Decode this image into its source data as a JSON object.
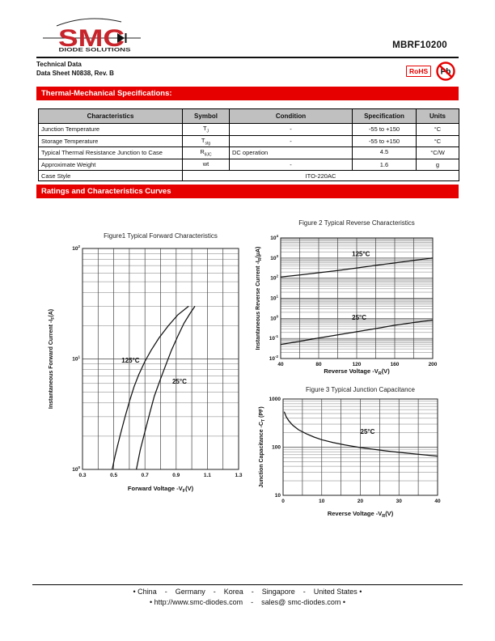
{
  "header": {
    "brand": "SMC",
    "brand_tagline": "DIODE SOLUTIONS",
    "part_number": "MBRF10200",
    "doc_title": "Technical Data",
    "doc_subtitle": "Data Sheet N0838, Rev. B",
    "rohs_label": "RoHS",
    "pb_label": "Pb"
  },
  "section_banners": {
    "thermal": "Thermal-Mechanical Specifications:",
    "curves": "Ratings and Characteristics Curves"
  },
  "colors": {
    "banner_red": "#e60000",
    "logo_red": "#c8242b",
    "table_header_bg": "#c0c0c0"
  },
  "spec_table": {
    "columns": [
      "Characteristics",
      "Symbol",
      "Condition",
      "Specification",
      "Units"
    ],
    "rows": [
      {
        "characteristics": "Junction Temperature",
        "symbol_base": "T",
        "symbol_sub": "J",
        "condition": "-",
        "specification": "-55 to +150",
        "units": "°C"
      },
      {
        "characteristics": "Storage Temperature",
        "symbol_base": "T",
        "symbol_sub": "stg",
        "condition": "-",
        "specification": "-55 to +150",
        "units": "°C"
      },
      {
        "characteristics": "Typical Thermal Resistance Junction to Case",
        "symbol_base": "R",
        "symbol_sub": "θJC",
        "condition": "DC operation",
        "specification": "4.5",
        "units": "°C/W"
      },
      {
        "characteristics": "Approximate Weight",
        "symbol_base": "wt",
        "symbol_sub": "",
        "condition": "-",
        "specification": "1.6",
        "units": "g"
      },
      {
        "characteristics": "Case Style",
        "span_value": "ITO-220AC"
      }
    ]
  },
  "chart_data": [
    {
      "id": "fig1",
      "type": "line",
      "title": "Figure1 Typical Forward Characteristics",
      "xlabel": "Forward Voltage -V~F~(V)",
      "ylabel": "Instantaneous Forward Current -I~F~(A)",
      "xlim": [
        0.3,
        1.3
      ],
      "x_grid_step": 0.1,
      "x_ticks": [
        "0.3",
        "0.5",
        "0.7",
        "0.9",
        "1.1",
        "1.3"
      ],
      "ylim": [
        1,
        100
      ],
      "y_exp": [
        0,
        2
      ],
      "y_tick_style": "pow",
      "grid": true,
      "legend_position": "none",
      "series": [
        {
          "name": "125°C",
          "points": [
            [
              0.49,
              1
            ],
            [
              0.51,
              1.35
            ],
            [
              0.54,
              2.0
            ],
            [
              0.57,
              2.9
            ],
            [
              0.6,
              4.1
            ],
            [
              0.63,
              5.6
            ],
            [
              0.66,
              7.2
            ],
            [
              0.7,
              9.5
            ],
            [
              0.74,
              12
            ],
            [
              0.79,
              15.5
            ],
            [
              0.85,
              20
            ],
            [
              0.91,
              25
            ],
            [
              0.96,
              28.5
            ],
            [
              0.98,
              30
            ]
          ],
          "label": {
            "x": 0.55,
            "y": 9.3
          }
        },
        {
          "name": "25°C",
          "points": [
            [
              0.645,
              1
            ],
            [
              0.67,
              1.5
            ],
            [
              0.7,
              2.2
            ],
            [
              0.73,
              3.2
            ],
            [
              0.76,
              4.6
            ],
            [
              0.8,
              6.6
            ],
            [
              0.84,
              9.3
            ],
            [
              0.87,
              12
            ],
            [
              0.91,
              16
            ],
            [
              0.95,
              21
            ],
            [
              0.99,
              26
            ],
            [
              1.02,
              30
            ]
          ],
          "label": {
            "x": 0.875,
            "y": 6
          }
        }
      ]
    },
    {
      "id": "fig2",
      "type": "line",
      "title": "Figure 2 Typical Reverse Characteristics",
      "xlabel": "Reverse Voltage -V~R~(V)",
      "ylabel": "Instantaneous Reverse Current -I~R~(μA)",
      "xlim": [
        40,
        200
      ],
      "x_grid_step": 20,
      "x_ticks": [
        "40",
        "80",
        "120",
        "160",
        "200"
      ],
      "ylim": [
        0.01,
        10000
      ],
      "y_exp": [
        -2,
        4
      ],
      "y_tick_style": "pow",
      "grid": true,
      "legend_position": "none",
      "series": [
        {
          "name": "125°C",
          "points": [
            [
              40,
              115
            ],
            [
              60,
              145
            ],
            [
              80,
              185
            ],
            [
              100,
              240
            ],
            [
              120,
              320
            ],
            [
              140,
              430
            ],
            [
              160,
              570
            ],
            [
              180,
              760
            ],
            [
              200,
              1000
            ]
          ],
          "label": {
            "x": 115,
            "y": 1250
          }
        },
        {
          "name": "25°C",
          "points": [
            [
              40,
              0.05
            ],
            [
              60,
              0.072
            ],
            [
              80,
              0.105
            ],
            [
              100,
              0.15
            ],
            [
              120,
              0.215
            ],
            [
              140,
              0.31
            ],
            [
              160,
              0.45
            ],
            [
              180,
              0.62
            ],
            [
              200,
              0.82
            ]
          ],
          "label": {
            "x": 115,
            "y": 0.85
          }
        }
      ]
    },
    {
      "id": "fig3",
      "type": "line",
      "title": "Figure 3 Typical Junction Capacitance",
      "xlabel": "Reverse Voltage -V~R~(V)",
      "ylabel": "Junction Capacitance -C~T~ (PF)",
      "xlim": [
        0,
        40
      ],
      "x_grid_step": 5,
      "x_ticks": [
        "0",
        "10",
        "20",
        "30",
        "40"
      ],
      "ylim": [
        10,
        1000
      ],
      "y_exp": [
        1,
        3
      ],
      "y_tick_style": "plain",
      "grid": true,
      "legend_position": "none",
      "series": [
        {
          "name": "25°C",
          "points": [
            [
              0.3,
              545
            ],
            [
              0.8,
              430
            ],
            [
              1.5,
              350
            ],
            [
              2.5,
              285
            ],
            [
              4,
              230
            ],
            [
              6,
              190
            ],
            [
              8,
              162
            ],
            [
              10,
              143
            ],
            [
              13,
              124
            ],
            [
              16,
              111
            ],
            [
              20,
              98
            ],
            [
              24,
              89
            ],
            [
              28,
              81
            ],
            [
              32,
              75
            ],
            [
              36,
              70
            ],
            [
              40,
              65
            ]
          ],
          "label": {
            "x": 20,
            "y": 190
          }
        }
      ]
    }
  ],
  "footer": {
    "regions": "• China    -    Germany    -    Korea    -    Singapore    -    United States •",
    "contacts": "• http://www.smc-diodes.com    -    sales@ smc-diodes.com •"
  }
}
